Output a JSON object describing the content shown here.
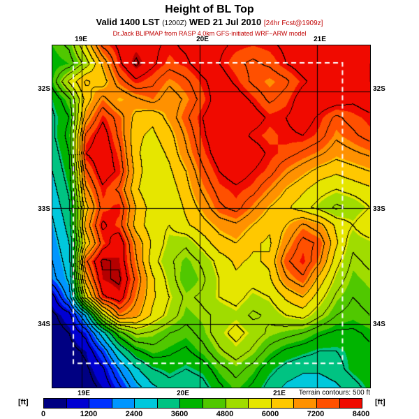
{
  "header": {
    "title": "Height of BL Top",
    "valid_line": {
      "prefix": "Valid 1400 LST",
      "zulu": "(1200Z)",
      "date": "WED 21 Jul 2010",
      "fcst": "[24hr Fcst@1909z]"
    },
    "model_line": "Dr.Jack BLIPMAP from RASP 4.0km GFS-initiated WRF~ARW model"
  },
  "map": {
    "top_ticks": [
      {
        "text": "19E",
        "x": 116
      },
      {
        "text": "20E",
        "x": 290
      },
      {
        "text": "21E",
        "x": 458
      }
    ],
    "bottom_ticks": [
      {
        "text": "19E",
        "x": 120
      },
      {
        "text": "20E",
        "x": 262
      },
      {
        "text": "21E",
        "x": 400
      }
    ],
    "left_ticks": [
      {
        "text": "32S",
        "y": 128
      },
      {
        "text": "33S",
        "y": 300
      },
      {
        "text": "34S",
        "y": 465
      }
    ],
    "right_ticks": [
      {
        "text": "32S",
        "y": 128
      },
      {
        "text": "33S",
        "y": 300
      },
      {
        "text": "34S",
        "y": 465
      }
    ]
  },
  "footer": {
    "terrain_note": "Terrain contours: 500 ft",
    "units": "[ft]"
  },
  "chart_data": {
    "type": "heatmap",
    "title": "Height of BL Top",
    "units": "ft",
    "x_ticks": [
      "19E",
      "20E",
      "21E"
    ],
    "y_ticks": [
      "32S",
      "33S",
      "34S"
    ],
    "lon_range": [
      18.75,
      21.45
    ],
    "lat_range": [
      31.6,
      34.55
    ],
    "graticule": {
      "lons": [
        19,
        20,
        21
      ],
      "lats": [
        32,
        33,
        34
      ]
    },
    "contour_interval_ft": 500,
    "contour_color": "#000000",
    "domain_box_color": "#ffffff",
    "inner_domain_frac": {
      "x0": 0.066,
      "y0": 0.051,
      "x1": 0.913,
      "y1": 0.929
    },
    "colorbar": {
      "min": 0,
      "max": 8400,
      "step": 600,
      "tick_values": [
        0,
        1200,
        2400,
        3600,
        4800,
        6000,
        7200,
        8400
      ],
      "palette": [
        "#000082",
        "#0000d2",
        "#0032ff",
        "#0096ff",
        "#00c8dc",
        "#00c382",
        "#00b400",
        "#50c800",
        "#a0dc00",
        "#e6e600",
        "#ffc800",
        "#ff9100",
        "#ff5000",
        "#f00a00"
      ],
      "over_color": "#b40000"
    },
    "grid": {
      "cols": 20,
      "rows": 20,
      "values": [
        [
          4200,
          4600,
          6000,
          7600,
          8100,
          8300,
          8100,
          7900,
          8100,
          8300,
          8100,
          7900,
          7800,
          7900,
          8100,
          8300,
          8300,
          8100,
          8300,
          8300
        ],
        [
          4000,
          4200,
          5200,
          6600,
          7900,
          8600,
          8100,
          7700,
          7900,
          8300,
          8000,
          7600,
          7400,
          7600,
          8000,
          8300,
          8300,
          8000,
          8300,
          8400
        ],
        [
          4200,
          5600,
          6600,
          6200,
          7300,
          7900,
          7600,
          7100,
          7400,
          7900,
          8300,
          7900,
          7400,
          7100,
          7400,
          7900,
          8300,
          8300,
          8400,
          8400
        ],
        [
          3600,
          4400,
          6200,
          7200,
          6500,
          6900,
          7200,
          6700,
          7100,
          7700,
          8300,
          8300,
          7900,
          7400,
          7700,
          8300,
          8400,
          8300,
          8100,
          8300
        ],
        [
          3400,
          4000,
          6800,
          7900,
          7300,
          6300,
          6100,
          6700,
          7400,
          8000,
          8400,
          8400,
          8300,
          7900,
          8000,
          8300,
          7900,
          7400,
          7700,
          7900
        ],
        [
          3400,
          4200,
          7600,
          8300,
          7400,
          6100,
          5900,
          6300,
          7100,
          7900,
          8400,
          8300,
          7900,
          7700,
          7900,
          8000,
          7700,
          7100,
          7400,
          7700
        ],
        [
          3200,
          4000,
          8000,
          8400,
          7700,
          6100,
          5700,
          6100,
          6900,
          7700,
          8300,
          8400,
          8300,
          7900,
          7700,
          7400,
          7100,
          6700,
          6900,
          7100
        ],
        [
          3000,
          3800,
          7400,
          8300,
          7900,
          6300,
          5500,
          5900,
          6500,
          7400,
          8000,
          8300,
          8000,
          7700,
          7100,
          6700,
          6300,
          6100,
          6300,
          6500
        ],
        [
          2800,
          3600,
          6900,
          7900,
          7400,
          6100,
          5500,
          5700,
          6300,
          7100,
          7700,
          7900,
          7700,
          7100,
          6500,
          6100,
          5700,
          5500,
          5700,
          5900
        ],
        [
          2600,
          3400,
          6300,
          7700,
          7900,
          6500,
          5700,
          5500,
          6100,
          6700,
          7400,
          7700,
          7100,
          6500,
          6100,
          5700,
          5300,
          4900,
          5100,
          5500
        ],
        [
          2400,
          3200,
          6700,
          8100,
          7700,
          6300,
          5700,
          5500,
          5900,
          6300,
          6700,
          6900,
          6500,
          6100,
          6500,
          7100,
          6700,
          5900,
          5500,
          6000
        ],
        [
          2200,
          3000,
          6100,
          7700,
          8400,
          6900,
          5900,
          5300,
          5100,
          5700,
          6300,
          6500,
          6100,
          5900,
          6900,
          7700,
          7400,
          6100,
          5100,
          5300
        ],
        [
          2000,
          2800,
          7400,
          8600,
          8400,
          7100,
          5700,
          5100,
          4700,
          5100,
          5700,
          6100,
          5900,
          6100,
          7400,
          7900,
          7100,
          5700,
          4900,
          5100
        ],
        [
          1800,
          2600,
          6700,
          8400,
          8600,
          7400,
          6100,
          5300,
          4500,
          4900,
          5500,
          5900,
          5700,
          5900,
          6900,
          7400,
          6300,
          5300,
          4700,
          4900
        ],
        [
          800,
          2200,
          5700,
          7900,
          8300,
          7100,
          6100,
          5500,
          4900,
          5100,
          5500,
          5700,
          5300,
          5500,
          6100,
          6500,
          5700,
          4900,
          4500,
          4700
        ],
        [
          400,
          800,
          2600,
          5300,
          7100,
          6700,
          5900,
          5300,
          4700,
          4900,
          5100,
          5300,
          4900,
          5100,
          5500,
          5700,
          5100,
          4500,
          4300,
          4500
        ],
        [
          300,
          500,
          1200,
          2800,
          4300,
          5100,
          4900,
          4500,
          4300,
          4700,
          5300,
          5700,
          5300,
          4900,
          4700,
          4500,
          4100,
          3900,
          3900,
          4100
        ],
        [
          200,
          300,
          600,
          1600,
          3000,
          3900,
          4300,
          4100,
          3900,
          4300,
          4900,
          5300,
          4900,
          4300,
          3900,
          3700,
          3500,
          3500,
          3700,
          3900
        ],
        [
          200,
          200,
          400,
          900,
          2000,
          2900,
          3500,
          3700,
          3500,
          3700,
          4300,
          4700,
          4300,
          3700,
          3300,
          3100,
          3100,
          3300,
          3700,
          3900
        ],
        [
          100,
          200,
          300,
          600,
          1400,
          2300,
          2900,
          3300,
          3100,
          3300,
          3900,
          4300,
          3900,
          3300,
          2900,
          2700,
          2700,
          2900,
          3300,
          3700
        ]
      ]
    }
  }
}
